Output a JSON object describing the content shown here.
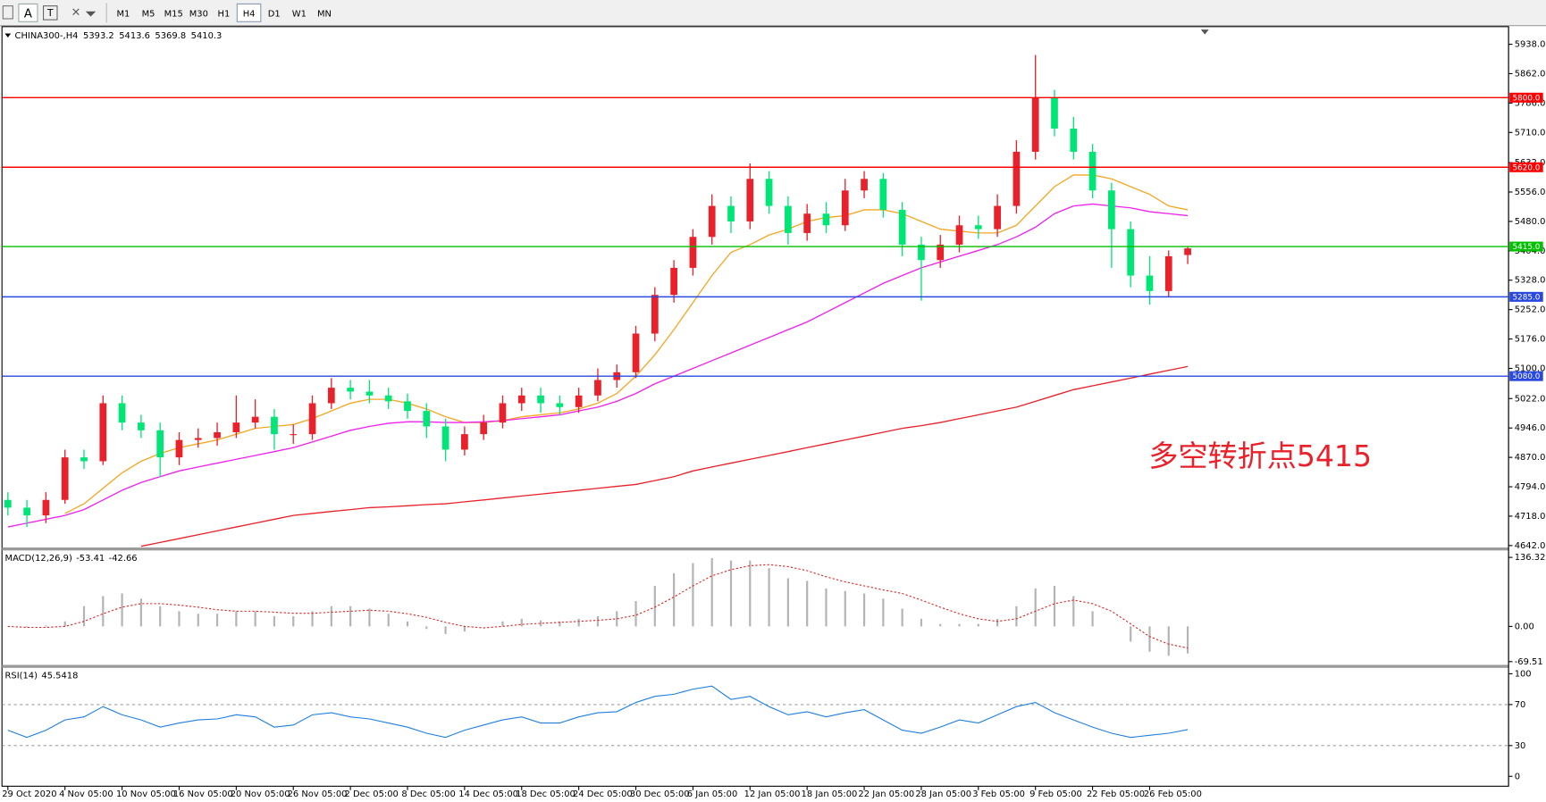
{
  "toolbar": {
    "text_button": "A",
    "timeframes": [
      "M1",
      "M5",
      "M15",
      "M30",
      "H1",
      "H4",
      "D1",
      "W1",
      "MN"
    ],
    "active_timeframe": "H4"
  },
  "chart_data": [
    {
      "type": "candlestick",
      "title": "CHINA300-,H4",
      "categories": [
        "29 Oct 2020",
        null,
        null,
        "4 Nov 05:00",
        null,
        null,
        "10 Nov 05:00",
        null,
        null,
        "16 Nov 05:00",
        null,
        null,
        "20 Nov 05:00",
        null,
        null,
        "26 Nov 05:00",
        null,
        null,
        "2 Dec 05:00",
        null,
        null,
        "8 Dec 05:00",
        null,
        null,
        "14 Dec 05:00",
        null,
        null,
        "18 Dec 05:00",
        null,
        null,
        "24 Dec 05:00",
        null,
        null,
        "30 Dec 05:00",
        null,
        null,
        "6 Jan 05:00",
        null,
        null,
        "12 Jan 05:00",
        null,
        null,
        "18 Jan 05:00",
        null,
        null,
        "22 Jan 05:00",
        null,
        null,
        "28 Jan 05:00",
        null,
        null,
        "3 Feb 05:00",
        null,
        null,
        "9 Feb 05:00",
        null,
        null,
        "22 Feb 05:00",
        null,
        null,
        "26 Feb 05:00",
        null,
        null
      ],
      "open": [
        4760,
        4740,
        4720,
        4760,
        4870,
        4860,
        5010,
        4960,
        4940,
        4870,
        4915,
        4920,
        4935,
        4960,
        4975,
        4930,
        4930,
        5010,
        5050,
        5040,
        5030,
        5015,
        4990,
        4950,
        4890,
        4930,
        4960,
        5010,
        5030,
        5010,
        5000,
        5030,
        5070,
        5090,
        5190,
        5290,
        5360,
        5440,
        5520,
        5480,
        5590,
        5520,
        5450,
        5500,
        5470,
        5560,
        5590,
        5510,
        5420,
        5380,
        5420,
        5470,
        5460,
        5520,
        5660,
        5800,
        5720,
        5660,
        5560,
        5460,
        5340,
        5300,
        5393.2
      ],
      "high": [
        4780,
        4760,
        4780,
        4890,
        4890,
        5030,
        5030,
        4980,
        4960,
        4935,
        4945,
        4960,
        5030,
        5020,
        4995,
        4955,
        5030,
        5075,
        5070,
        5070,
        5050,
        5035,
        5010,
        4970,
        4950,
        4980,
        5030,
        5050,
        5050,
        5030,
        5050,
        5100,
        5110,
        5210,
        5310,
        5380,
        5460,
        5550,
        5545,
        5630,
        5610,
        5545,
        5525,
        5530,
        5590,
        5610,
        5605,
        5530,
        5440,
        5445,
        5495,
        5495,
        5550,
        5690,
        5910,
        5820,
        5750,
        5680,
        5580,
        5480,
        5390,
        5405,
        5413.6
      ],
      "low": [
        4720,
        4690,
        4700,
        4750,
        4840,
        4850,
        4940,
        4920,
        4820,
        4850,
        4895,
        4900,
        4920,
        4945,
        4890,
        4905,
        4915,
        4995,
        5020,
        5010,
        4995,
        4970,
        4920,
        4860,
        4875,
        4915,
        4945,
        4990,
        4985,
        4980,
        4985,
        5015,
        5050,
        5075,
        5170,
        5270,
        5340,
        5420,
        5450,
        5460,
        5500,
        5420,
        5430,
        5450,
        5455,
        5540,
        5490,
        5390,
        5275,
        5360,
        5400,
        5435,
        5440,
        5500,
        5640,
        5700,
        5640,
        5540,
        5360,
        5310,
        5265,
        5285,
        5369.8
      ],
      "close": [
        4740,
        4720,
        4760,
        4870,
        4860,
        5010,
        4960,
        4940,
        4870,
        4915,
        4920,
        4935,
        4960,
        4975,
        4930,
        4930,
        5010,
        5050,
        5040,
        5030,
        5015,
        4990,
        4950,
        4890,
        4930,
        4960,
        5010,
        5030,
        5010,
        5000,
        5030,
        5070,
        5090,
        5190,
        5290,
        5360,
        5440,
        5520,
        5480,
        5590,
        5520,
        5450,
        5500,
        5470,
        5560,
        5590,
        5510,
        5420,
        5380,
        5420,
        5470,
        5460,
        5520,
        5660,
        5800,
        5720,
        5660,
        5560,
        5460,
        5340,
        5300,
        5390,
        5410.3
      ],
      "up_color": "#e8212a",
      "down_color": "#00e676",
      "ylim": [
        4637,
        5981
      ],
      "yticks": [
        {
          "value": 5938,
          "label": "5938.0"
        },
        {
          "value": 5862,
          "label": "5862.0"
        },
        {
          "value": 5786,
          "label": "5786.0"
        },
        {
          "value": 5710,
          "label": "5710.0"
        },
        {
          "value": 5632,
          "label": "5632.0"
        },
        {
          "value": 5556,
          "label": "5556.0"
        },
        {
          "value": 5480,
          "label": "5480.0"
        },
        {
          "value": 5404,
          "label": "5404.0"
        },
        {
          "value": 5328,
          "label": "5328.0"
        },
        {
          "value": 5252,
          "label": "5252.0"
        },
        {
          "value": 5176,
          "label": "5176.0"
        },
        {
          "value": 5100,
          "label": "5100.0"
        },
        {
          "value": 5022,
          "label": "5022.0"
        },
        {
          "value": 4946,
          "label": "4946.0"
        },
        {
          "value": 4870,
          "label": "4870.0"
        },
        {
          "value": 4794,
          "label": "4794.0"
        },
        {
          "value": 4718,
          "label": "4718.0"
        },
        {
          "value": 4642,
          "label": "4642.0"
        }
      ],
      "overlays": [
        {
          "color": "#f5a623",
          "values": [
            null,
            null,
            null,
            4725,
            4750,
            4790,
            4830,
            4860,
            4880,
            4895,
            4905,
            4915,
            4930,
            4945,
            4950,
            4955,
            4970,
            4990,
            5010,
            5020,
            5020,
            5010,
            4995,
            4975,
            4960,
            4960,
            4965,
            4975,
            4980,
            4985,
            4995,
            5010,
            5035,
            5080,
            5135,
            5200,
            5270,
            5340,
            5400,
            5420,
            5445,
            5460,
            5480,
            5490,
            5495,
            5510,
            5510,
            5500,
            5480,
            5460,
            5455,
            5450,
            5450,
            5470,
            5520,
            5570,
            5600,
            5600,
            5590,
            5570,
            5550,
            5520,
            5510
          ]
        },
        {
          "color": "#ee22ee",
          "values": [
            4690,
            4700,
            4710,
            4720,
            4735,
            4760,
            4785,
            4805,
            4820,
            4835,
            4845,
            4855,
            4865,
            4875,
            4885,
            4895,
            4910,
            4925,
            4940,
            4950,
            4958,
            4962,
            4962,
            4960,
            4960,
            4962,
            4965,
            4970,
            4975,
            4980,
            4990,
            5000,
            5015,
            5035,
            5060,
            5080,
            5100,
            5120,
            5140,
            5160,
            5180,
            5200,
            5220,
            5245,
            5270,
            5295,
            5320,
            5340,
            5360,
            5375,
            5390,
            5405,
            5420,
            5440,
            5465,
            5500,
            5520,
            5525,
            5520,
            5515,
            5505,
            5500,
            5495
          ]
        },
        {
          "color": "#e8212a",
          "values": [
            null,
            null,
            null,
            null,
            null,
            null,
            null,
            4640,
            4650,
            4660,
            4670,
            4680,
            4690,
            4700,
            4710,
            4720,
            4725,
            4730,
            4735,
            4740,
            4742,
            4745,
            4748,
            4750,
            4755,
            4760,
            4765,
            4770,
            4775,
            4780,
            4785,
            4790,
            4795,
            4800,
            4810,
            4820,
            4835,
            4845,
            4855,
            4865,
            4875,
            4885,
            4895,
            4905,
            4915,
            4925,
            4935,
            4945,
            4952,
            4960,
            4970,
            4980,
            4990,
            5000,
            5015,
            5030,
            5045,
            5055,
            5065,
            5075,
            5085,
            5095,
            5105
          ]
        }
      ],
      "levels": {
        "values": [
          5800,
          5620,
          5415,
          5285,
          5080
        ],
        "value_labels": [
          "5800.0",
          "5620.0",
          "5415.0",
          "5285.0",
          "5080.0"
        ],
        "colors": [
          "#ff0000",
          "#ff0000",
          "#00c000",
          "#2848e0",
          "#2848e0"
        ]
      },
      "annotation": "多空转折点5415"
    },
    {
      "type": "macd",
      "title": "MACD(12,26,9)",
      "histogram": [
        0,
        -2,
        2,
        10,
        40,
        60,
        65,
        55,
        40,
        30,
        25,
        25,
        30,
        30,
        20,
        20,
        30,
        40,
        40,
        35,
        25,
        10,
        -5,
        -15,
        -10,
        0,
        10,
        15,
        12,
        10,
        15,
        20,
        30,
        50,
        80,
        105,
        125,
        135,
        130,
        130,
        115,
        95,
        90,
        75,
        70,
        65,
        55,
        35,
        15,
        5,
        5,
        5,
        15,
        40,
        75,
        80,
        60,
        30,
        0,
        -30,
        -50,
        -58,
        -53.41
      ],
      "signal": [
        0,
        -2,
        -2,
        0,
        10,
        25,
        38,
        45,
        45,
        42,
        38,
        33,
        30,
        30,
        28,
        26,
        26,
        28,
        30,
        32,
        30,
        25,
        18,
        8,
        0,
        -3,
        0,
        4,
        6,
        8,
        10,
        12,
        15,
        22,
        38,
        58,
        80,
        100,
        112,
        120,
        122,
        118,
        110,
        98,
        88,
        80,
        72,
        65,
        52,
        38,
        25,
        15,
        10,
        15,
        30,
        45,
        52,
        45,
        30,
        5,
        -20,
        -35,
        -42.66
      ],
      "hist_color": "#b4b4b4",
      "signal_color": "#e02020",
      "ylim": [
        -74,
        150
      ],
      "yticks": [
        136.32,
        {
          "value": 0,
          "label": "0.00"
        },
        -69.51
      ]
    },
    {
      "type": "rsi",
      "title": "RSI(14)",
      "values": [
        45,
        38,
        45,
        55,
        58,
        68,
        60,
        55,
        48,
        52,
        55,
        56,
        60,
        58,
        48,
        50,
        60,
        62,
        58,
        56,
        52,
        48,
        42,
        38,
        45,
        50,
        55,
        58,
        52,
        52,
        58,
        62,
        63,
        72,
        78,
        80,
        85,
        88,
        75,
        78,
        68,
        60,
        63,
        58,
        62,
        65,
        55,
        45,
        42,
        48,
        55,
        52,
        60,
        68,
        72,
        62,
        55,
        48,
        42,
        38,
        40,
        42,
        45.5418
      ],
      "color": "#1e7fe0",
      "ylim": [
        -7.7,
        105.8
      ],
      "yticks": [
        100,
        70,
        30,
        0
      ],
      "dashed_levels": [
        70,
        30
      ]
    }
  ]
}
